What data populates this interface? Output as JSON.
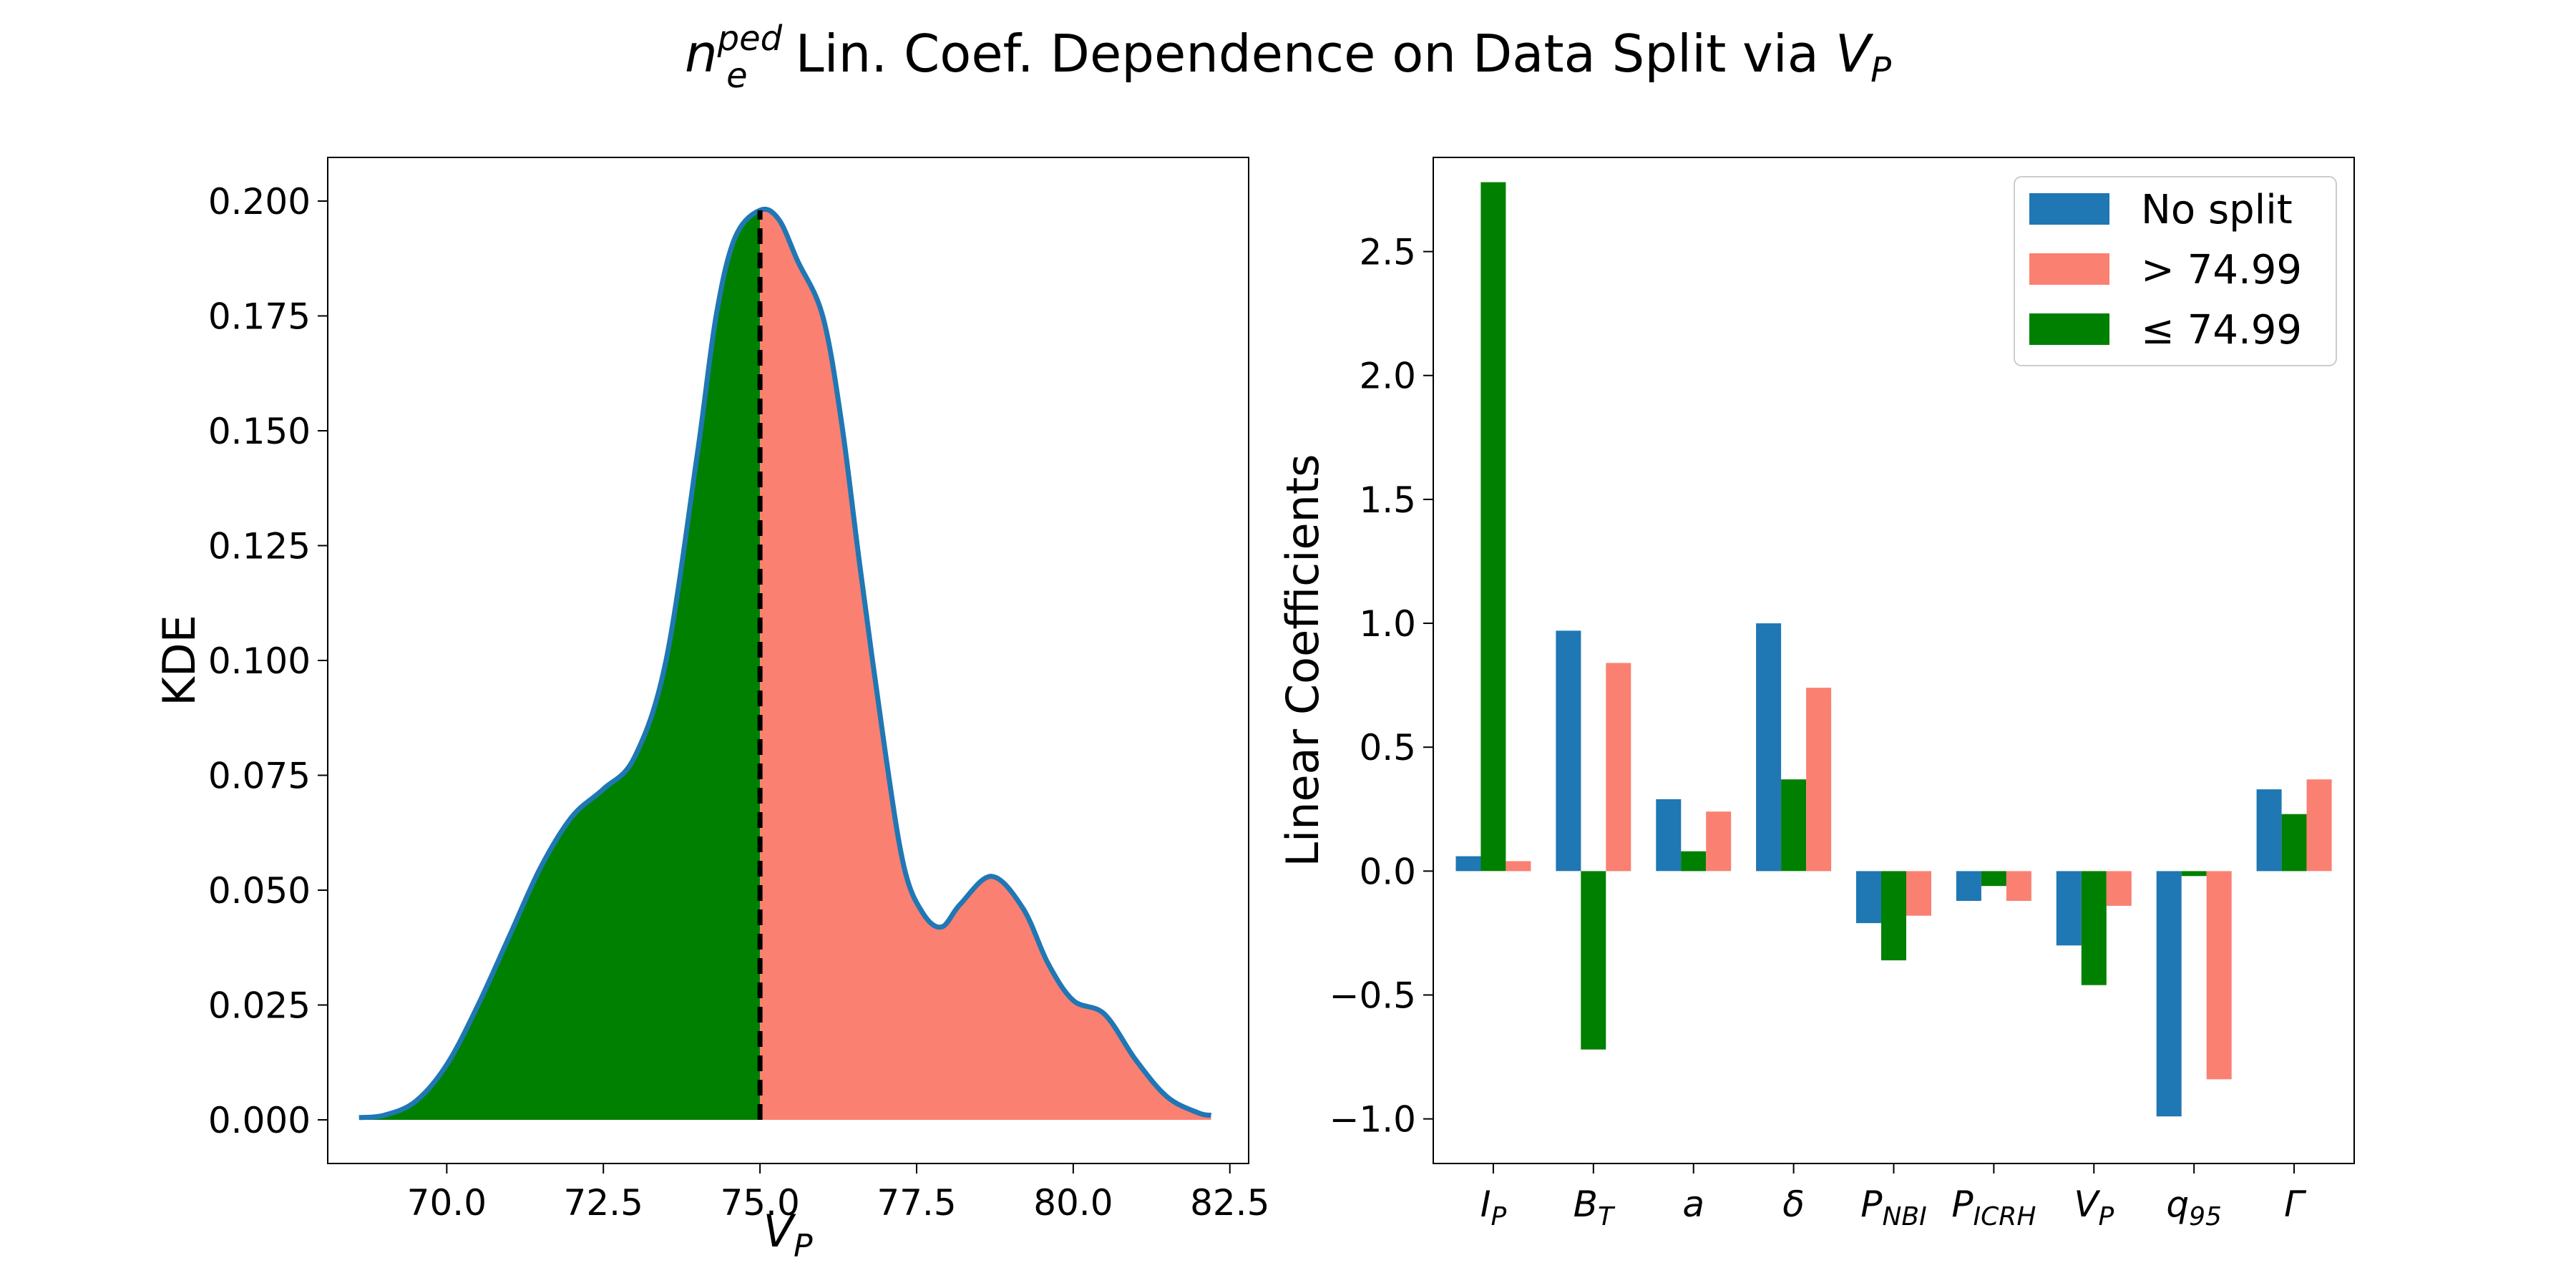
{
  "chart_data": [
    {
      "type": "area",
      "title_parts": {
        "base": "n",
        "sub": "e",
        "sup": "ped",
        "rest": " Lin. Coef. Dependence on Data Split via ",
        "var": "V",
        "var_sub": "P"
      },
      "xlabel_main": "V",
      "xlabel_sub": "P",
      "ylabel": "KDE",
      "xlim": [
        68.1,
        82.8
      ],
      "ylim": [
        -0.0095,
        0.2095
      ],
      "x_ticks": [
        70.0,
        72.5,
        75.0,
        77.5,
        80.0,
        82.5
      ],
      "x_tick_labels": [
        "70.0",
        "72.5",
        "75.0",
        "77.5",
        "80.0",
        "82.5"
      ],
      "y_ticks": [
        0.0,
        0.025,
        0.05,
        0.075,
        0.1,
        0.125,
        0.15,
        0.175,
        0.2
      ],
      "y_tick_labels": [
        "0.000",
        "0.025",
        "0.050",
        "0.075",
        "0.100",
        "0.125",
        "0.150",
        "0.175",
        "0.200"
      ],
      "split_value": 75.0,
      "colors": {
        "line": "#1f77b4",
        "left_fill": "#008000",
        "right_fill": "#fa8072",
        "split_line": "#000000"
      },
      "x": [
        68.6,
        69.0,
        69.5,
        70.0,
        70.5,
        71.0,
        71.5,
        72.0,
        72.5,
        73.0,
        73.5,
        74.0,
        74.3,
        74.6,
        75.0,
        75.3,
        75.6,
        76.0,
        76.3,
        76.6,
        77.0,
        77.3,
        77.6,
        77.9,
        78.2,
        78.7,
        79.2,
        79.6,
        80.0,
        80.5,
        81.0,
        81.5,
        82.0,
        82.2
      ],
      "y": [
        0.0005,
        0.001,
        0.004,
        0.012,
        0.025,
        0.04,
        0.055,
        0.066,
        0.072,
        0.079,
        0.1,
        0.145,
        0.175,
        0.192,
        0.198,
        0.196,
        0.187,
        0.175,
        0.152,
        0.12,
        0.08,
        0.055,
        0.045,
        0.042,
        0.047,
        0.053,
        0.046,
        0.034,
        0.026,
        0.023,
        0.013,
        0.005,
        0.0015,
        0.001
      ]
    },
    {
      "type": "bar",
      "ylabel": "Linear Coefficients",
      "ylim": [
        -1.18,
        2.88
      ],
      "y_ticks": [
        -1.0,
        -0.5,
        0.0,
        0.5,
        1.0,
        1.5,
        2.0,
        2.5
      ],
      "y_tick_labels": [
        "−1.0",
        "−0.5",
        "0.0",
        "0.5",
        "1.0",
        "1.5",
        "2.0",
        "2.5"
      ],
      "categories": [
        {
          "main": "I",
          "sub": "P"
        },
        {
          "main": "B",
          "sub": "T"
        },
        {
          "main": "a",
          "sub": ""
        },
        {
          "main": "δ",
          "sub": ""
        },
        {
          "main": "P",
          "sub": "NBI"
        },
        {
          "main": "P",
          "sub": "ICRH"
        },
        {
          "main": "V",
          "sub": "P"
        },
        {
          "main": "q",
          "sub": "95"
        },
        {
          "main": "Γ",
          "sub": ""
        }
      ],
      "series": [
        {
          "name": "No split",
          "color": "#1f77b4",
          "values": [
            0.06,
            0.97,
            0.29,
            1.0,
            -0.21,
            -0.12,
            -0.3,
            -0.99,
            0.33
          ]
        },
        {
          "name": "≤ 74.99",
          "color": "#008000",
          "values": [
            2.78,
            -0.72,
            0.08,
            0.37,
            -0.36,
            -0.06,
            -0.46,
            -0.02,
            0.23
          ]
        },
        {
          "name": "> 74.99",
          "color": "#fa8072",
          "values": [
            0.04,
            0.84,
            0.24,
            0.74,
            -0.18,
            -0.12,
            -0.14,
            -0.84,
            0.37
          ]
        }
      ],
      "legend": {
        "placement": "top-right",
        "entries": [
          {
            "label": "No split",
            "color": "#1f77b4"
          },
          {
            "label": "> 74.99",
            "color": "#fa8072"
          },
          {
            "label": "≤  74.99",
            "color": "#008000"
          }
        ]
      }
    }
  ]
}
